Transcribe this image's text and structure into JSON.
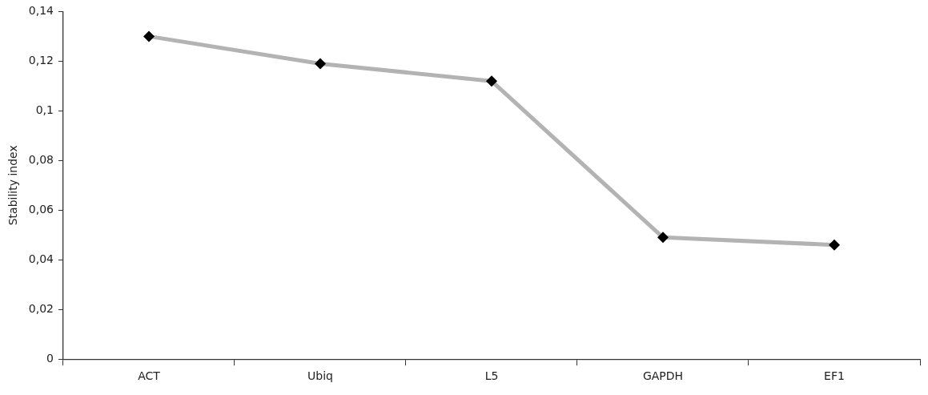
{
  "chart_data": {
    "type": "line",
    "ylabel": "Stability index",
    "categories": [
      "ACT",
      "Ubiq",
      "L5",
      "GAPDH",
      "EF1"
    ],
    "series": [
      {
        "color": "#b3b3b3",
        "values": [
          0.13,
          0.119,
          0.112,
          0.049,
          0.046
        ]
      }
    ],
    "ylim": [
      0,
      0.14
    ],
    "yticks": [
      0,
      {
        "value": 0.02,
        "label": "0,02"
      },
      {
        "value": 0.04,
        "label": "0,04"
      },
      {
        "value": 0.06,
        "label": "0,06"
      },
      {
        "value": 0.08,
        "label": "0,08"
      },
      {
        "value": 0.1,
        "label": "0,1"
      },
      {
        "value": 0.12,
        "label": "0,12"
      },
      {
        "value": 0.14,
        "label": "0,14"
      }
    ],
    "grid": false,
    "legend": false,
    "marker": "diamond",
    "line_style": "solid"
  }
}
